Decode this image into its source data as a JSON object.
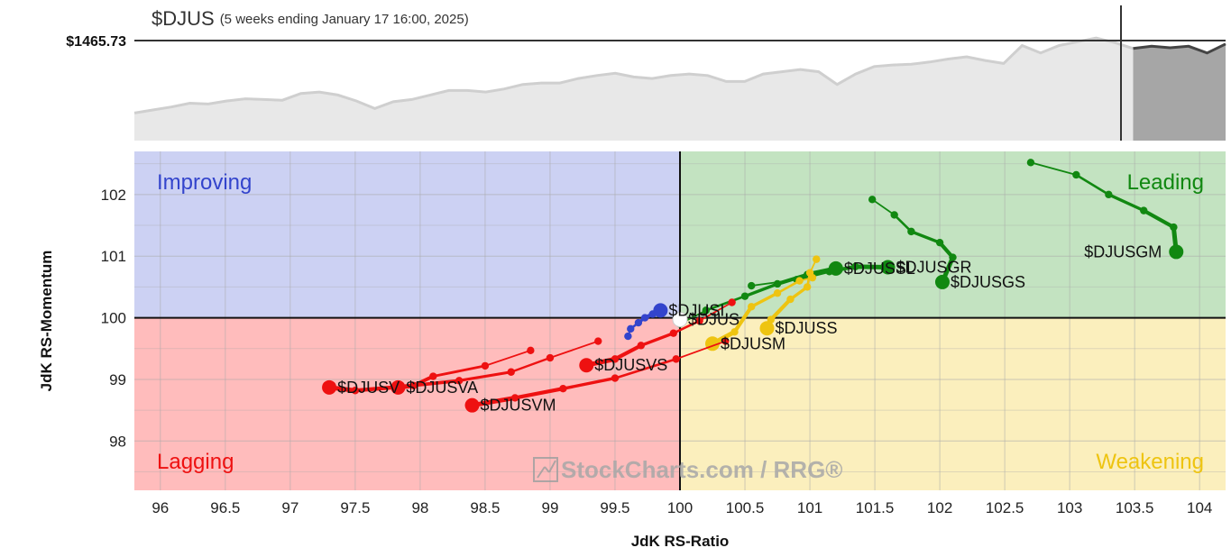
{
  "header": {
    "symbol": "$DJUS",
    "subtitle": "(5 weeks ending January 17 16:00, 2025)",
    "price_label": "$1465.73"
  },
  "watermark": {
    "text": "StockCharts.com / RRG®"
  },
  "price_history": [
    20,
    24,
    28,
    33,
    32,
    36,
    39,
    38,
    37,
    46,
    48,
    44,
    36,
    26,
    35,
    38,
    44,
    50,
    50,
    48,
    52,
    58,
    60,
    60,
    66,
    70,
    73,
    68,
    66,
    70,
    72,
    70,
    62,
    62,
    72,
    75,
    78,
    75,
    58,
    72,
    82,
    84,
    85,
    88,
    92,
    95,
    90,
    86,
    110,
    100,
    110,
    115,
    120,
    114,
    106,
    109,
    107,
    109,
    100,
    112
  ],
  "price_history_tail_start": 54,
  "chart_data": {
    "type": "scatter",
    "subtype": "relative-rotation-graph",
    "xlabel": "JdK RS-Ratio",
    "ylabel": "JdK RS-Momentum",
    "xlim": [
      95.8,
      104.2
    ],
    "ylim": [
      97.2,
      102.7
    ],
    "xticks": [
      96,
      96.5,
      97,
      97.5,
      98,
      98.5,
      99,
      99.5,
      100,
      100.5,
      101,
      101.5,
      102,
      102.5,
      103,
      103.5,
      104
    ],
    "yticks": [
      98,
      99,
      100,
      101,
      102
    ],
    "grid": true,
    "quadrants": [
      {
        "name": "Improving",
        "color": "#3344cc",
        "bg": "#ccd1f3"
      },
      {
        "name": "Leading",
        "color": "#118811",
        "bg": "#c3e3c1"
      },
      {
        "name": "Lagging",
        "color": "#ee1111",
        "bg": "#ffbcbc"
      },
      {
        "name": "Weakening",
        "color": "#eec411",
        "bg": "#fbefbd"
      }
    ],
    "series": [
      {
        "name": "$DJUSGM",
        "color": "#118811",
        "points": [
          [
            102.7,
            102.52
          ],
          [
            103.05,
            102.32
          ],
          [
            103.3,
            102.0
          ],
          [
            103.57,
            101.74
          ],
          [
            103.8,
            101.47
          ],
          [
            103.82,
            101.07
          ]
        ]
      },
      {
        "name": "$DJUSGS",
        "color": "#118811",
        "points": [
          [
            101.48,
            101.92
          ],
          [
            101.65,
            101.67
          ],
          [
            101.78,
            101.4
          ],
          [
            102.0,
            101.22
          ],
          [
            102.1,
            100.98
          ],
          [
            102.02,
            100.58
          ]
        ]
      },
      {
        "name": "$DJUSGR",
        "color": "#118811",
        "points": [
          [
            100.55,
            100.52
          ],
          [
            100.9,
            100.62
          ],
          [
            101.15,
            100.75
          ],
          [
            101.35,
            100.83
          ],
          [
            101.6,
            100.82
          ]
        ]
      },
      {
        "name": "$DJUSSL",
        "color": "#118811",
        "points": [
          [
            100.0,
            99.9
          ],
          [
            100.2,
            100.12
          ],
          [
            100.5,
            100.35
          ],
          [
            100.75,
            100.55
          ],
          [
            100.98,
            100.7
          ],
          [
            101.2,
            100.8
          ]
        ]
      },
      {
        "name": "$DJUS",
        "color": "#ffffff",
        "points": [
          [
            100.0,
            99.97
          ]
        ]
      },
      {
        "name": "$DJUSI",
        "color": "#3344cc",
        "points": [
          [
            99.6,
            99.7
          ],
          [
            99.62,
            99.82
          ],
          [
            99.68,
            99.92
          ],
          [
            99.73,
            100.0
          ],
          [
            99.79,
            100.06
          ],
          [
            99.85,
            100.12
          ]
        ]
      },
      {
        "name": "$DJUSS",
        "color": "#eec411",
        "points": [
          [
            101.05,
            100.95
          ],
          [
            101.0,
            100.73
          ],
          [
            100.98,
            100.5
          ],
          [
            100.85,
            100.3
          ],
          [
            100.7,
            99.97
          ],
          [
            100.67,
            99.83
          ]
        ]
      },
      {
        "name": "$DJUSM",
        "color": "#eec411",
        "points": [
          [
            101.02,
            100.65
          ],
          [
            100.92,
            100.6
          ],
          [
            100.75,
            100.4
          ],
          [
            100.55,
            100.18
          ],
          [
            100.42,
            99.77
          ],
          [
            100.25,
            99.58
          ]
        ]
      },
      {
        "name": "$DJUSVS",
        "color": "#ee1111",
        "points": [
          [
            100.4,
            100.25
          ],
          [
            100.15,
            99.95
          ],
          [
            99.95,
            99.75
          ],
          [
            99.7,
            99.55
          ],
          [
            99.5,
            99.33
          ],
          [
            99.28,
            99.23
          ]
        ]
      },
      {
        "name": "$DJUSVM",
        "color": "#ee1111",
        "points": [
          [
            100.35,
            99.62
          ],
          [
            99.97,
            99.33
          ],
          [
            99.5,
            99.02
          ],
          [
            99.1,
            98.85
          ],
          [
            98.73,
            98.7
          ],
          [
            98.4,
            98.58
          ]
        ]
      },
      {
        "name": "$DJUSVA",
        "color": "#ee1111",
        "points": [
          [
            98.85,
            99.47
          ],
          [
            98.5,
            99.22
          ],
          [
            98.1,
            99.05
          ],
          [
            97.95,
            98.9
          ],
          [
            97.83,
            98.87
          ]
        ]
      },
      {
        "name": "$DJUSV",
        "color": "#ee1111",
        "points": [
          [
            99.37,
            99.62
          ],
          [
            99.0,
            99.35
          ],
          [
            98.7,
            99.12
          ],
          [
            98.3,
            98.98
          ],
          [
            97.85,
            98.88
          ],
          [
            97.5,
            98.82
          ],
          [
            97.3,
            98.87
          ]
        ]
      }
    ]
  }
}
